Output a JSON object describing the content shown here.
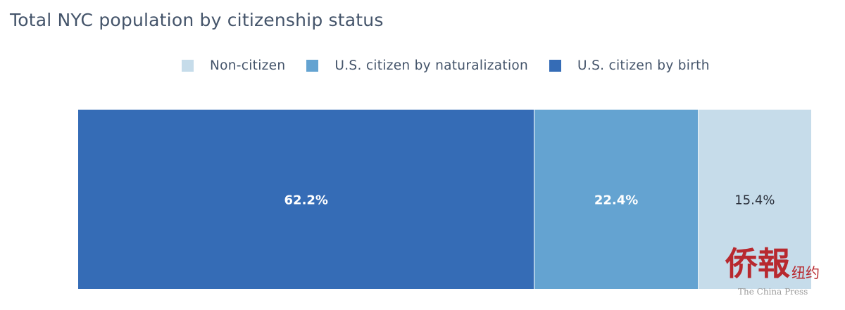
{
  "chart_data": {
    "type": "bar",
    "orientation": "horizontal",
    "stacked": "percent",
    "title": "Total NYC population by citizenship status",
    "legend": {
      "placement": "top",
      "entries": [
        "Non-citizen",
        "U.S. citizen by naturalization",
        "U.S. citizen by birth"
      ]
    },
    "series": [
      {
        "name": "U.S. citizen by birth",
        "value": 62.2,
        "label": "62.2%",
        "color": "#356cb6",
        "label_color": "#ffffff"
      },
      {
        "name": "U.S. citizen by naturalization",
        "value": 22.4,
        "label": "22.4%",
        "color": "#64a3d1",
        "label_color": "#ffffff"
      },
      {
        "name": "Non-citizen",
        "value": 15.4,
        "label": "15.4%",
        "color": "#c6dcea",
        "label_color": "#2a2f3a"
      }
    ],
    "xlim": [
      0,
      100
    ],
    "grid": false,
    "axes_visible": false
  },
  "watermark": {
    "chinese_big": "侨報",
    "chinese_small": "纽约",
    "english": "The China Press"
  }
}
